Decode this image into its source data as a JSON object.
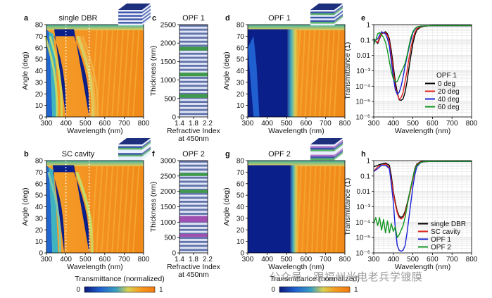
{
  "panels": {
    "a": {
      "label": "a",
      "title": "single DBR",
      "xlabel": "Wavelength (nm)",
      "ylabel": "Angle (deg)",
      "xticks": [
        "300",
        "400",
        "500",
        "600",
        "700",
        "800"
      ],
      "yticks": [
        "0",
        "10",
        "20",
        "30",
        "40",
        "50",
        "60",
        "70",
        "80"
      ]
    },
    "b": {
      "label": "b",
      "title": "SC cavity",
      "xlabel": "Wavelength (nm)",
      "ylabel": "Angle (deg)",
      "xticks": [
        "300",
        "400",
        "500",
        "600",
        "700",
        "800"
      ],
      "yticks": [
        "0",
        "10",
        "20",
        "30",
        "40",
        "50",
        "60",
        "70",
        "80"
      ]
    },
    "c": {
      "label": "c",
      "title": "OPF 1",
      "xlabel1": "Refractive Index",
      "xlabel2": "at 450nm",
      "ylabel": "Thickness (nm)",
      "xticks": [
        "1.4",
        "1.8",
        "2.2"
      ],
      "yticks": [
        "0",
        "500",
        "1000",
        "1500",
        "2000",
        "2500"
      ]
    },
    "f": {
      "label": "f",
      "title": "OPF 2",
      "xlabel1": "Refractive Index",
      "xlabel2": "at 450nm",
      "ylabel": "Thickness (nm)",
      "xticks": [
        "1.4",
        "1.8",
        "2.2"
      ],
      "yticks": [
        "0",
        "500",
        "1000",
        "1500",
        "2000",
        "2500",
        "3000"
      ]
    },
    "d": {
      "label": "d",
      "title": "OPF 1",
      "xlabel": "Wavelength (nm)",
      "ylabel": "Angle (deg)",
      "xticks": [
        "300",
        "400",
        "500",
        "600",
        "700",
        "800"
      ],
      "yticks": [
        "0",
        "10",
        "20",
        "30",
        "40",
        "50",
        "60",
        "70",
        "80"
      ]
    },
    "g": {
      "label": "g",
      "title": "OPF 2",
      "xlabel": "Wavelength (nm)",
      "ylabel": "Angle (deg)",
      "xticks": [
        "300",
        "400",
        "500",
        "600",
        "700",
        "800"
      ],
      "yticks": [
        "0",
        "10",
        "20",
        "30",
        "40",
        "50",
        "60",
        "70",
        "80"
      ]
    },
    "e": {
      "label": "e",
      "ylabel": "Transmittance (1)",
      "xlabel": "Wavelength (nm)",
      "xticks": [
        "300",
        "400",
        "500",
        "600",
        "700",
        "800"
      ],
      "yticks": [
        "10⁻⁶",
        "10⁻⁵",
        "10⁻⁴",
        "10⁻³",
        "0.01",
        "0.1",
        "1"
      ],
      "legend_title": "OPF 1"
    },
    "h": {
      "label": "h",
      "ylabel": "Transmittance (1)",
      "xlabel": "Wavelength (nm)",
      "xticks": [
        "300",
        "400",
        "500",
        "600",
        "700",
        "800"
      ],
      "yticks": [
        "10⁻⁶",
        "10⁻⁵",
        "10⁻⁴",
        "10⁻³",
        "0.01",
        "0.1",
        "1"
      ]
    }
  },
  "colorbars": {
    "left": {
      "label": "Transmittance (normalized)",
      "min": "0",
      "max": "1"
    },
    "right": {
      "label": "Transmittance (normalized)",
      "min": "0",
      "max": "1"
    }
  },
  "watermark": "公众号 · 跟福州光电老兵学镀膜",
  "colors": {
    "green_layer": "#3f9a4a",
    "purple_layer": "#a050b0",
    "light_layer": "#dfe6f6",
    "dark_layer": "#3b4e92",
    "black": "#000000",
    "red": "#e0201a",
    "blue": "#1722d6",
    "green": "#11961f"
  },
  "chart_data": [
    {
      "type": "heatmap",
      "panel": "a",
      "title": "single DBR",
      "xlabel": "Wavelength (nm)",
      "ylabel": "Angle (deg)",
      "xlim": [
        300,
        800
      ],
      "ylim": [
        0,
        80
      ],
      "stopband_low": [
        400,
        400,
        398,
        393,
        385,
        373,
        357,
        340
      ],
      "stopband_high": [
        520,
        520,
        517,
        510,
        498,
        482,
        463,
        442
      ],
      "angles": [
        0,
        10,
        20,
        30,
        40,
        50,
        60,
        70
      ],
      "dotted_lines_nm": [
        400,
        520
      ]
    },
    {
      "type": "heatmap",
      "panel": "b",
      "title": "SC cavity",
      "xlabel": "Wavelength (nm)",
      "ylabel": "Angle (deg)",
      "xlim": [
        300,
        800
      ],
      "ylim": [
        0,
        80
      ],
      "dotted_lines_nm": [
        400,
        520
      ]
    },
    {
      "type": "bar",
      "panel": "c",
      "title": "OPF 1",
      "xlabel": "Refractive Index at 450nm",
      "ylabel": "Thickness (nm)",
      "xlim": [
        1.4,
        2.2
      ],
      "ylim": [
        0,
        2500
      ],
      "high_index_layers_nm": [
        [
          520,
          620
        ],
        [
          1100,
          1200
        ],
        [
          1800,
          1900
        ]
      ]
    },
    {
      "type": "bar",
      "panel": "f",
      "title": "OPF 2",
      "xlabel": "Refractive Index at 450nm",
      "ylabel": "Thickness (nm)",
      "xlim": [
        1.4,
        2.2
      ],
      "ylim": [
        0,
        3000
      ],
      "high_index_layers_nm": [
        [
          1950,
          2050
        ],
        [
          2500,
          2600
        ]
      ],
      "mid_index_layers_nm": [
        [
          520,
          620
        ],
        [
          1000,
          1200
        ]
      ]
    },
    {
      "type": "heatmap",
      "panel": "d",
      "title": "OPF 1",
      "xlabel": "Wavelength (nm)",
      "ylabel": "Angle (deg)",
      "xlim": [
        300,
        800
      ],
      "ylim": [
        0,
        80
      ]
    },
    {
      "type": "heatmap",
      "panel": "g",
      "title": "OPF 2",
      "xlabel": "Wavelength (nm)",
      "ylabel": "Angle (deg)",
      "xlim": [
        300,
        800
      ],
      "ylim": [
        0,
        80
      ]
    },
    {
      "type": "line",
      "panel": "e",
      "title": "OPF 1",
      "xlabel": "Wavelength (nm)",
      "ylabel": "Transmittance (1)",
      "xlim": [
        300,
        800
      ],
      "ylim": [
        1e-06,
        1
      ],
      "yscale": "log",
      "series": [
        {
          "name": "0 deg",
          "color": "#000000",
          "x": [
            300,
            320,
            340,
            360,
            370,
            380,
            390,
            400,
            410,
            420,
            430,
            440,
            450,
            460,
            470,
            480,
            490,
            500,
            510,
            520,
            540,
            560,
            600,
            700,
            800
          ],
          "y": [
            0.12,
            0.06,
            0.25,
            0.35,
            0.25,
            0.12,
            0.02,
            0.002,
            0.0002,
            4e-05,
            1.3e-05,
            1.2e-05,
            1.5e-05,
            4e-05,
            0.0002,
            0.0015,
            0.01,
            0.06,
            0.2,
            0.45,
            0.7,
            0.8,
            0.85,
            0.85,
            0.85
          ]
        },
        {
          "name": "20 deg",
          "color": "#e0201a",
          "x": [
            300,
            320,
            340,
            360,
            370,
            380,
            390,
            400,
            410,
            420,
            430,
            440,
            450,
            460,
            470,
            480,
            490,
            500,
            510,
            520,
            540,
            560,
            600,
            700,
            800
          ],
          "y": [
            0.1,
            0.07,
            0.28,
            0.3,
            0.2,
            0.08,
            0.01,
            0.001,
            0.0001,
            3e-05,
            1.4e-05,
            1.8e-05,
            4e-05,
            0.0002,
            0.001,
            0.006,
            0.03,
            0.12,
            0.3,
            0.55,
            0.75,
            0.8,
            0.85,
            0.85,
            0.85
          ]
        },
        {
          "name": "40 deg",
          "color": "#1722d6",
          "x": [
            300,
            320,
            340,
            360,
            370,
            380,
            390,
            400,
            410,
            420,
            430,
            440,
            450,
            460,
            470,
            480,
            490,
            500,
            510,
            520,
            540,
            560,
            600,
            700,
            800
          ],
          "y": [
            0.08,
            0.12,
            0.35,
            0.25,
            0.12,
            0.04,
            0.004,
            0.0004,
            6e-05,
            3e-05,
            4e-05,
            0.0001,
            0.0004,
            0.002,
            0.008,
            0.03,
            0.1,
            0.3,
            0.5,
            0.7,
            0.8,
            0.82,
            0.85,
            0.85,
            0.85
          ]
        },
        {
          "name": "60 deg",
          "color": "#11961f",
          "x": [
            300,
            310,
            320,
            330,
            340,
            350,
            360,
            370,
            380,
            390,
            400,
            410,
            420,
            430,
            440,
            450,
            460,
            470,
            480,
            490,
            500,
            510,
            520,
            540,
            560,
            600,
            700,
            800
          ],
          "y": [
            0.05,
            0.1,
            0.25,
            0.3,
            0.22,
            0.15,
            0.07,
            0.02,
            0.004,
            0.0009,
            0.0003,
            0.0002,
            0.0002,
            0.0004,
            0.0008,
            0.0015,
            0.003,
            0.01,
            0.04,
            0.15,
            0.35,
            0.55,
            0.7,
            0.8,
            0.82,
            0.85,
            0.85,
            0.85
          ]
        }
      ]
    },
    {
      "type": "line",
      "panel": "h",
      "xlabel": "Wavelength (nm)",
      "ylabel": "Transmittance (1)",
      "xlim": [
        300,
        800
      ],
      "ylim": [
        1e-06,
        1
      ],
      "yscale": "log",
      "series": [
        {
          "name": "single DBR",
          "color": "#000000",
          "x": [
            300,
            320,
            340,
            360,
            380,
            390,
            400,
            410,
            420,
            430,
            440,
            450,
            460,
            470,
            480,
            490,
            500,
            510,
            520,
            540,
            560,
            600,
            700,
            800
          ],
          "y": [
            0.4,
            0.5,
            0.6,
            0.7,
            0.5,
            0.1,
            0.01,
            0.002,
            0.0005,
            0.00025,
            0.0002,
            0.00025,
            0.0005,
            0.0015,
            0.005,
            0.02,
            0.08,
            0.3,
            0.6,
            0.85,
            0.9,
            0.9,
            0.9,
            0.9
          ]
        },
        {
          "name": "SC cavity",
          "color": "#e0201a",
          "x": [
            300,
            320,
            340,
            360,
            380,
            390,
            400,
            410,
            420,
            430,
            440,
            450,
            460,
            470,
            480,
            490,
            500,
            510,
            520,
            540,
            560,
            600,
            700,
            800
          ],
          "y": [
            0.2,
            0.4,
            0.5,
            0.6,
            0.35,
            0.06,
            0.008,
            0.0015,
            0.0004,
            0.0002,
            0.00016,
            0.0002,
            0.0004,
            0.0012,
            0.004,
            0.015,
            0.06,
            0.25,
            0.55,
            0.8,
            0.85,
            0.9,
            0.9,
            0.9
          ]
        },
        {
          "name": "OPF 1",
          "color": "#1722d6",
          "x": [
            300,
            320,
            340,
            360,
            380,
            390,
            400,
            410,
            420,
            430,
            440,
            450,
            460,
            470,
            480,
            490,
            500,
            510,
            520,
            540,
            560,
            600,
            700,
            800
          ],
          "y": [
            0.2,
            0.3,
            0.5,
            0.5,
            0.3,
            0.03,
            0.002,
            4e-05,
            3e-06,
            1.5e-06,
            1.3e-06,
            1.5e-06,
            3e-06,
            2e-05,
            0.0002,
            0.002,
            0.02,
            0.12,
            0.4,
            0.75,
            0.85,
            0.9,
            0.9,
            0.9
          ]
        },
        {
          "name": "OPF 2",
          "color": "#11961f",
          "x": [
            300,
            310,
            320,
            330,
            340,
            350,
            360,
            370,
            380,
            390,
            400,
            410,
            420,
            430,
            440,
            450,
            460,
            470,
            480,
            490,
            500,
            510,
            520,
            540,
            560,
            600,
            700,
            800
          ],
          "y": [
            8e-05,
            0.0002,
            6e-05,
            0.0002,
            3e-05,
            0.00015,
            2e-05,
            0.00012,
            2e-05,
            8e-05,
            2.5e-05,
            5e-05,
            1e-05,
            1.5e-05,
            3e-05,
            6e-05,
            0.0002,
            0.001,
            0.005,
            0.02,
            0.08,
            0.25,
            0.5,
            0.75,
            0.85,
            0.9,
            0.9,
            0.9
          ]
        }
      ]
    }
  ]
}
